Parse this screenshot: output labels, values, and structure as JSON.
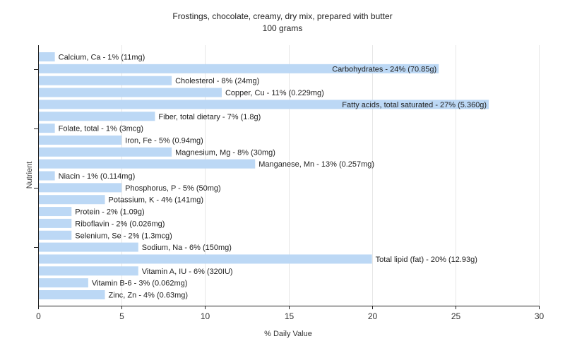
{
  "chart_data": {
    "type": "bar",
    "orientation": "horizontal",
    "title": "Frostings, chocolate, creamy, dry mix, prepared with butter",
    "subtitle": "100 grams",
    "xlabel": "% Daily Value",
    "ylabel": "Nutrient",
    "xlim": [
      0,
      30
    ],
    "xticks": [
      0,
      5,
      10,
      15,
      20,
      25,
      30
    ],
    "grid": true,
    "bar_color": "#bcd8f5",
    "categories": [
      "Calcium, Ca",
      "Carbohydrates",
      "Cholesterol",
      "Copper, Cu",
      "Fatty acids, total saturated",
      "Fiber, total dietary",
      "Folate, total",
      "Iron, Fe",
      "Magnesium, Mg",
      "Manganese, Mn",
      "Niacin",
      "Phosphorus, P",
      "Potassium, K",
      "Protein",
      "Riboflavin",
      "Selenium, Se",
      "Sodium, Na",
      "Total lipid (fat)",
      "Vitamin A, IU",
      "Vitamin B-6",
      "Zinc, Zn"
    ],
    "values": [
      1,
      24,
      8,
      11,
      27,
      7,
      1,
      5,
      8,
      13,
      1,
      5,
      4,
      2,
      2,
      2,
      6,
      20,
      6,
      3,
      4
    ],
    "labels": [
      "Calcium, Ca - 1% (11mg)",
      "Carbohydrates - 24% (70.85g)",
      "Cholesterol - 8% (24mg)",
      "Copper, Cu - 11% (0.229mg)",
      "Fatty acids, total saturated - 27% (5.360g)",
      "Fiber, total dietary - 7% (1.8g)",
      "Folate, total - 1% (3mcg)",
      "Iron, Fe - 5% (0.94mg)",
      "Magnesium, Mg - 8% (30mg)",
      "Manganese, Mn - 13% (0.257mg)",
      "Niacin - 1% (0.114mg)",
      "Phosphorus, P - 5% (50mg)",
      "Potassium, K - 4% (141mg)",
      "Protein - 2% (1.09g)",
      "Riboflavin - 2% (0.026mg)",
      "Selenium, Se - 2% (1.3mcg)",
      "Sodium, Na - 6% (150mg)",
      "Total lipid (fat) - 20% (12.93g)",
      "Vitamin A, IU - 6% (320IU)",
      "Vitamin B-6 - 3% (0.062mg)",
      "Zinc, Zn - 4% (0.63mg)"
    ],
    "labels_inside": [
      false,
      true,
      false,
      false,
      true,
      false,
      false,
      false,
      false,
      false,
      false,
      false,
      false,
      false,
      false,
      false,
      false,
      false,
      false,
      false,
      false
    ]
  }
}
